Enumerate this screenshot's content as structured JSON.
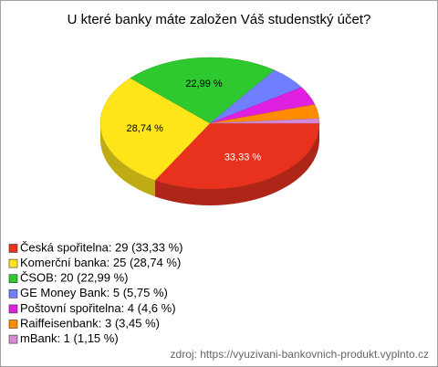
{
  "chart_data": {
    "type": "pie",
    "title": "U které banky máte založen Váš studenstký účet?",
    "categories": [
      "Česká spořitelna",
      "Komerční banka",
      "ČSOB",
      "GE Money Bank",
      "Poštovní spořitelna",
      "Raiffeisenbank",
      "mBank"
    ],
    "values": [
      29,
      25,
      20,
      5,
      4,
      3,
      1
    ],
    "value_labels": [
      "33,33 %",
      "28,74 %",
      "22,99 %",
      null,
      null,
      null,
      null
    ],
    "colors": [
      "#e8321e",
      "#ffe51a",
      "#2ec92e",
      "#6f7fff",
      "#e020e0",
      "#ff8c00",
      "#d48ad4"
    ],
    "legend": [
      "Česká spořitelna: 29 (33,33 %)",
      "Komerční banka: 25 (28,74 %)",
      "ČSOB: 20 (22,99 %)",
      "GE Money Bank: 5 (5,75 %)",
      "Poštovní spořitelna: 4 (4,6 %)",
      "Raiffeisenbank: 3 (3,45 %)",
      "mBank: 1 (1,15 %)"
    ],
    "source": "zdroj: https://vyuzivani-bankovnich-produkt.vyplnto.cz"
  }
}
